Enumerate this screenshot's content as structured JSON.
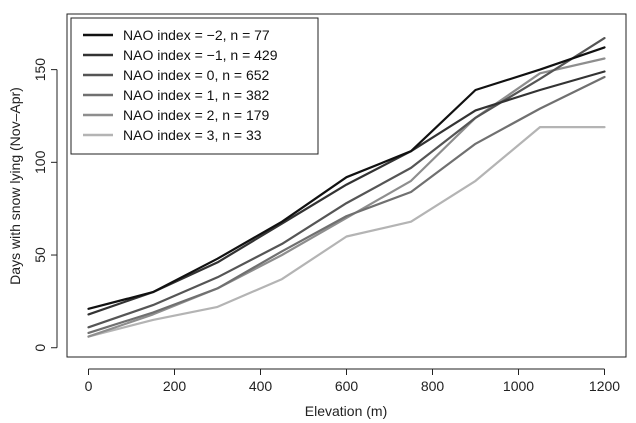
{
  "chart_data": {
    "type": "line",
    "title": "",
    "xlabel": "Elevation (m)",
    "ylabel": "Days with snow lying (Nov–Apr)",
    "x": [
      0,
      150,
      300,
      450,
      600,
      750,
      900,
      1050,
      1200
    ],
    "xlim": [
      -50,
      1250
    ],
    "ylim": [
      -5,
      180
    ],
    "x_ticks": [
      0,
      200,
      400,
      600,
      800,
      1000,
      1200
    ],
    "y_ticks": [
      0,
      50,
      100,
      150
    ],
    "grid": false,
    "legend_position": "top-left",
    "series": [
      {
        "name": "NAO index = −2, n = 77",
        "color": "#111111",
        "values": [
          21,
          30,
          48,
          68,
          92,
          106,
          139,
          150,
          162
        ]
      },
      {
        "name": "NAO index = −1, n = 429",
        "color": "#333333",
        "values": [
          18,
          30,
          46,
          67,
          88,
          106,
          128,
          139,
          149
        ]
      },
      {
        "name": "NAO index = 0, n = 652",
        "color": "#555555",
        "values": [
          11,
          23,
          38,
          56,
          78,
          97,
          124,
          145,
          167
        ]
      },
      {
        "name": "NAO index = 1, n = 382",
        "color": "#707070",
        "values": [
          8,
          19,
          32,
          52,
          71,
          84,
          110,
          129,
          146
        ]
      },
      {
        "name": "NAO index = 2, n = 179",
        "color": "#8e8e8e",
        "values": [
          6,
          18,
          32,
          50,
          70,
          90,
          124,
          148,
          156
        ]
      },
      {
        "name": "NAO index = 3, n = 33",
        "color": "#b4b4b4",
        "values": [
          6,
          15,
          22,
          37,
          60,
          68,
          90,
          119,
          119
        ]
      }
    ]
  }
}
